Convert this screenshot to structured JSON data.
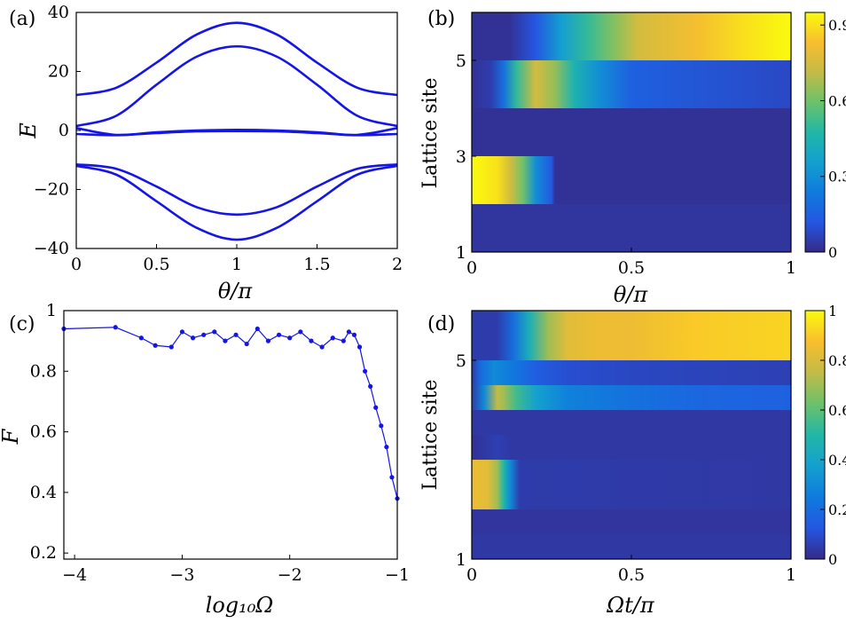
{
  "figure_title": "Four-panel figure",
  "chart_data": [
    {
      "id": "a",
      "panel_label": "(a)",
      "type": "line",
      "title": "",
      "xlabel": "θ/π",
      "ylabel": "E",
      "xlim": [
        0,
        2
      ],
      "ylim": [
        -40,
        40
      ],
      "xticks": [
        "0",
        "0.5",
        "1",
        "1.5",
        "2"
      ],
      "yticks": [
        "40",
        "20",
        "0",
        "−20",
        "−40"
      ],
      "line_color": "#1515e6",
      "series": [
        {
          "name": "band 1",
          "x": [
            0,
            0.25,
            0.5,
            0.75,
            1,
            1.25,
            1.5,
            1.75,
            2
          ],
          "y": [
            12,
            14.5,
            23,
            32.5,
            36.5,
            32.5,
            23,
            14.5,
            12
          ]
        },
        {
          "name": "band 2",
          "x": [
            0,
            0.25,
            0.5,
            0.75,
            1,
            1.25,
            1.5,
            1.75,
            2
          ],
          "y": [
            1.5,
            5,
            15.5,
            25,
            28.5,
            25,
            15.5,
            5,
            1.5
          ]
        },
        {
          "name": "band 3",
          "x": [
            0,
            0.25,
            0.5,
            0.75,
            1,
            1.25,
            1.5,
            1.75,
            2
          ],
          "y": [
            0.8,
            -1.5,
            -0.6,
            0,
            0.2,
            0,
            -0.6,
            -1.5,
            0.8
          ]
        },
        {
          "name": "band 4",
          "x": [
            0,
            0.25,
            0.5,
            0.75,
            1,
            1.25,
            1.5,
            1.75,
            2
          ],
          "y": [
            -1.2,
            -1.6,
            -0.9,
            -0.3,
            -0.2,
            -0.3,
            -0.9,
            -1.6,
            -1.2
          ]
        },
        {
          "name": "band 5",
          "x": [
            0,
            0.25,
            0.5,
            0.75,
            1,
            1.25,
            1.5,
            1.75,
            2
          ],
          "y": [
            -11.5,
            -13,
            -19,
            -26,
            -28.5,
            -26,
            -19,
            -13,
            -11.5
          ]
        },
        {
          "name": "band 6",
          "x": [
            0,
            0.25,
            0.5,
            0.75,
            1,
            1.25,
            1.5,
            1.75,
            2
          ],
          "y": [
            -12,
            -15,
            -24,
            -33,
            -37,
            -33,
            -24,
            -15,
            -12
          ]
        }
      ]
    },
    {
      "id": "b",
      "panel_label": "(b)",
      "type": "heatmap",
      "title": "",
      "xlabel": "θ/π",
      "ylabel": "Lattice site",
      "xlim": [
        0,
        1
      ],
      "xticks": [
        "0",
        "0.5",
        "1"
      ],
      "yticks": [
        "5",
        "3",
        "1"
      ],
      "rows": 5,
      "row_order": "top to bottom = site 6 … site 1",
      "colorbar": {
        "min": 0,
        "max": 0.95,
        "ticks": [
          "0.9",
          "0.6",
          "0.3",
          "0"
        ]
      },
      "rows_profile": [
        {
          "site": 6,
          "x": [
            0,
            0.12,
            0.2,
            0.28,
            0.36,
            0.44,
            0.52,
            0.7,
            0.86,
            1
          ],
          "v": [
            0.02,
            0.02,
            0.12,
            0.35,
            0.5,
            0.62,
            0.75,
            0.82,
            0.9,
            0.95
          ]
        },
        {
          "site": 5,
          "x": [
            0,
            0.06,
            0.1,
            0.14,
            0.2,
            0.26,
            0.32,
            0.4,
            0.5,
            1
          ],
          "v": [
            0.02,
            0.05,
            0.2,
            0.5,
            0.75,
            0.65,
            0.45,
            0.3,
            0.15,
            0.08
          ]
        },
        {
          "site": 4,
          "x": [
            0,
            1
          ],
          "v": [
            0.02,
            0.02
          ]
        },
        {
          "site": 2,
          "x": [
            0,
            0.08,
            0.12,
            0.16,
            0.2,
            0.25,
            0.26,
            1
          ],
          "v": [
            0.95,
            0.9,
            0.75,
            0.6,
            0.3,
            0.12,
            0.02,
            0.02
          ]
        },
        {
          "site": 1,
          "x": [
            0,
            1
          ],
          "v": [
            0.03,
            0.03
          ]
        }
      ]
    },
    {
      "id": "c",
      "panel_label": "(c)",
      "type": "line",
      "title": "",
      "xlabel": "log₁₀Ω",
      "ylabel": "F",
      "xlim": [
        -4.1,
        -1
      ],
      "ylim": [
        0.18,
        1
      ],
      "xticks": [
        "−4",
        "−3",
        "−2",
        "−1"
      ],
      "yticks": [
        "1",
        "0.8",
        "0.6",
        "0.4",
        "0.2"
      ],
      "line_color": "#1515e6",
      "series": [
        {
          "name": "F",
          "x": [
            -4.1,
            -3.62,
            -3.38,
            -3.25,
            -3.1,
            -3.0,
            -2.9,
            -2.8,
            -2.7,
            -2.6,
            -2.5,
            -2.4,
            -2.3,
            -2.2,
            -2.1,
            -2.0,
            -1.9,
            -1.8,
            -1.7,
            -1.6,
            -1.5,
            -1.45,
            -1.4,
            -1.35,
            -1.3,
            -1.25,
            -1.2,
            -1.15,
            -1.1,
            -1.05,
            -1.0
          ],
          "y": [
            0.94,
            0.945,
            0.91,
            0.885,
            0.88,
            0.93,
            0.91,
            0.92,
            0.93,
            0.9,
            0.92,
            0.89,
            0.94,
            0.9,
            0.92,
            0.91,
            0.93,
            0.9,
            0.88,
            0.91,
            0.9,
            0.93,
            0.92,
            0.88,
            0.8,
            0.75,
            0.68,
            0.62,
            0.55,
            0.45,
            0.38
          ]
        }
      ]
    },
    {
      "id": "d",
      "panel_label": "(d)",
      "type": "heatmap",
      "title": "",
      "xlabel": "Ωt/π",
      "ylabel": "Lattice site",
      "xlim": [
        0,
        1
      ],
      "xticks": [
        "0",
        "0.5",
        "1"
      ],
      "yticks": [
        "5",
        "1"
      ],
      "rows": 10,
      "row_order": "top to bottom",
      "colorbar": {
        "min": 0,
        "max": 1,
        "ticks": [
          "1",
          "0.8",
          "0.6",
          "0.4",
          "0.2",
          "0"
        ]
      },
      "rows_profile": [
        {
          "site": "r1",
          "x": [
            0,
            0.08,
            0.13,
            0.18,
            0.24,
            0.3,
            0.4,
            0.5,
            0.7,
            1
          ],
          "v": [
            0.05,
            0.05,
            0.2,
            0.45,
            0.7,
            0.82,
            0.85,
            0.85,
            0.9,
            0.92
          ]
        },
        {
          "site": "r2",
          "x": [
            0,
            0.08,
            0.13,
            0.18,
            0.24,
            0.3,
            0.4,
            0.5,
            0.7,
            1
          ],
          "v": [
            0.05,
            0.05,
            0.2,
            0.45,
            0.7,
            0.82,
            0.85,
            0.85,
            0.9,
            0.92
          ]
        },
        {
          "site": "r3",
          "x": [
            0,
            0.03,
            0.07,
            0.12,
            0.2,
            0.3,
            0.5,
            1
          ],
          "v": [
            0.05,
            0.2,
            0.3,
            0.25,
            0.15,
            0.1,
            0.08,
            0.06
          ]
        },
        {
          "site": "r4",
          "x": [
            0,
            0.04,
            0.08,
            0.1,
            0.14,
            0.2,
            0.3,
            0.5,
            0.7,
            1
          ],
          "v": [
            0.05,
            0.3,
            0.75,
            0.7,
            0.55,
            0.38,
            0.27,
            0.22,
            0.18,
            0.16
          ]
        },
        {
          "site": "r5",
          "x": [
            0,
            1
          ],
          "v": [
            0.04,
            0.04
          ]
        },
        {
          "site": "r6",
          "x": [
            0,
            0.08,
            0.12,
            1
          ],
          "v": [
            0.02,
            0.06,
            0.04,
            0.04
          ]
        },
        {
          "site": "r7",
          "x": [
            0,
            0.05,
            0.08,
            0.1,
            0.12,
            0.15,
            1
          ],
          "v": [
            0.85,
            0.82,
            0.7,
            0.5,
            0.3,
            0.05,
            0.04
          ]
        },
        {
          "site": "r8",
          "x": [
            0,
            0.05,
            0.08,
            0.1,
            0.12,
            0.15,
            1
          ],
          "v": [
            0.85,
            0.82,
            0.7,
            0.5,
            0.3,
            0.05,
            0.04
          ]
        },
        {
          "site": "r9",
          "x": [
            0,
            1
          ],
          "v": [
            0.03,
            0.03
          ]
        },
        {
          "site": "r10",
          "x": [
            0,
            1
          ],
          "v": [
            0.04,
            0.04
          ]
        }
      ]
    }
  ]
}
